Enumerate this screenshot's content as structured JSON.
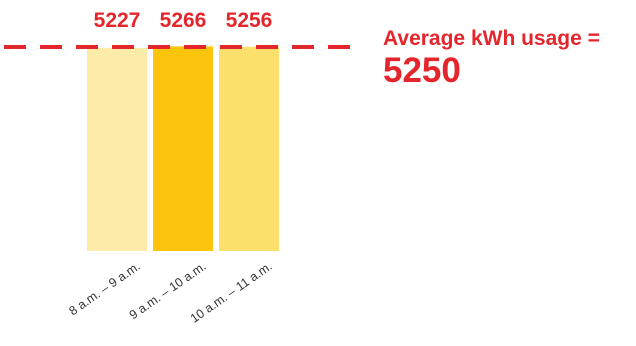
{
  "chart_data": {
    "type": "bar",
    "categories": [
      "8 a.m. – 9 a.m.",
      "9 a.m. – 10 a.m.",
      "10 a.m. – 11 a.m."
    ],
    "values": [
      5227,
      5266,
      5256
    ],
    "bar_colors": [
      "#fdeba9",
      "#fdc40e",
      "#fddf6c"
    ],
    "reference_line": {
      "value": 5250,
      "label": "Average kWh usage =",
      "value_label": "5250",
      "color": "#e3262c",
      "style": "dashed"
    },
    "data_label_color": "#e3262c",
    "title": "",
    "xlabel": "",
    "ylabel": ""
  }
}
